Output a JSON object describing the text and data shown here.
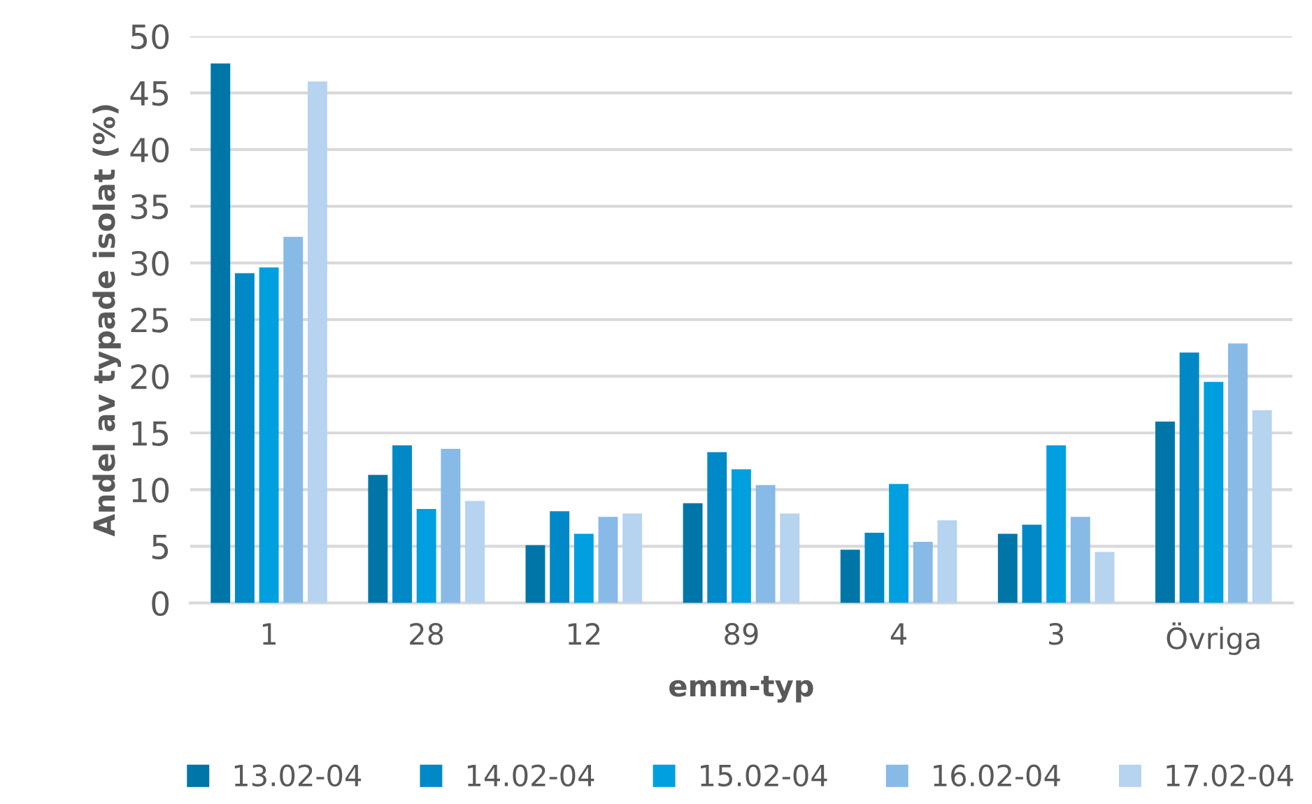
{
  "chart_data": {
    "type": "bar",
    "xlabel": "emm-typ",
    "ylabel": "Andel av typade isolat (%)",
    "categories": [
      "1",
      "28",
      "12",
      "89",
      "4",
      "3",
      "Övriga"
    ],
    "series": [
      {
        "name": "13.02-04",
        "color": "#0076a8",
        "values": [
          47.6,
          11.3,
          5.1,
          8.8,
          4.7,
          6.1,
          16.0
        ]
      },
      {
        "name": "14.02-04",
        "color": "#0089c6",
        "values": [
          29.1,
          13.9,
          8.1,
          13.3,
          6.2,
          6.9,
          22.1
        ]
      },
      {
        "name": "15.02-04",
        "color": "#009fe0",
        "values": [
          29.6,
          8.3,
          6.1,
          11.8,
          10.5,
          13.9,
          19.5
        ]
      },
      {
        "name": "16.02-04",
        "color": "#88bae8",
        "values": [
          32.3,
          13.6,
          7.6,
          10.4,
          5.4,
          7.6,
          22.9
        ]
      },
      {
        "name": "17.02-04",
        "color": "#b6d3f0",
        "values": [
          46.0,
          9.0,
          7.9,
          7.9,
          7.3,
          4.5,
          17.0
        ]
      }
    ],
    "ylim": [
      0,
      50
    ],
    "yticks": [
      0,
      5,
      10,
      15,
      20,
      25,
      30,
      35,
      40,
      45,
      50
    ],
    "grid": "y",
    "legend": "bottom"
  }
}
